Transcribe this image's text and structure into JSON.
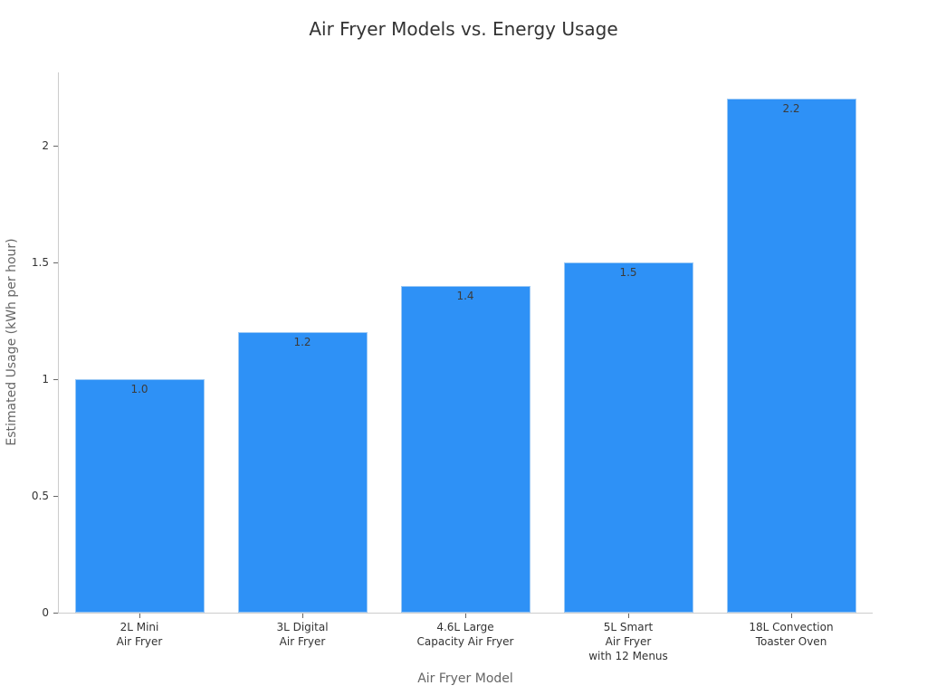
{
  "chart_data": {
    "type": "bar",
    "title": "Air Fryer Models vs. Energy Usage",
    "xlabel": "Air Fryer Model",
    "ylabel": "Estimated Usage (kWh per hour)",
    "categories": [
      "2L Mini Air Fryer",
      "3L Digital Air Fryer",
      "4.6L Large Capacity Air Fryer",
      "5L Smart Air Fryer with 12 Menus",
      "18L Convection Toaster Oven"
    ],
    "category_lines": [
      [
        "2L Mini",
        "Air Fryer"
      ],
      [
        "3L Digital",
        "Air Fryer"
      ],
      [
        "4.6L Large",
        "Capacity Air Fryer"
      ],
      [
        "5L Smart",
        "Air Fryer",
        "with 12 Menus"
      ],
      [
        "18L Convection",
        "Toaster Oven"
      ]
    ],
    "values": [
      1.0,
      1.2,
      1.4,
      1.5,
      2.2
    ],
    "value_labels": [
      "1.0",
      "1.2",
      "1.4",
      "1.5",
      "2.2"
    ],
    "yticks": [
      0,
      0.5,
      1,
      1.5,
      2
    ],
    "ytick_labels": [
      "0",
      "0.5",
      "1",
      "1.5",
      "2"
    ],
    "ylim": [
      0,
      2.32
    ],
    "grid": false,
    "legend": null,
    "bar_color": "#2e91f6"
  }
}
